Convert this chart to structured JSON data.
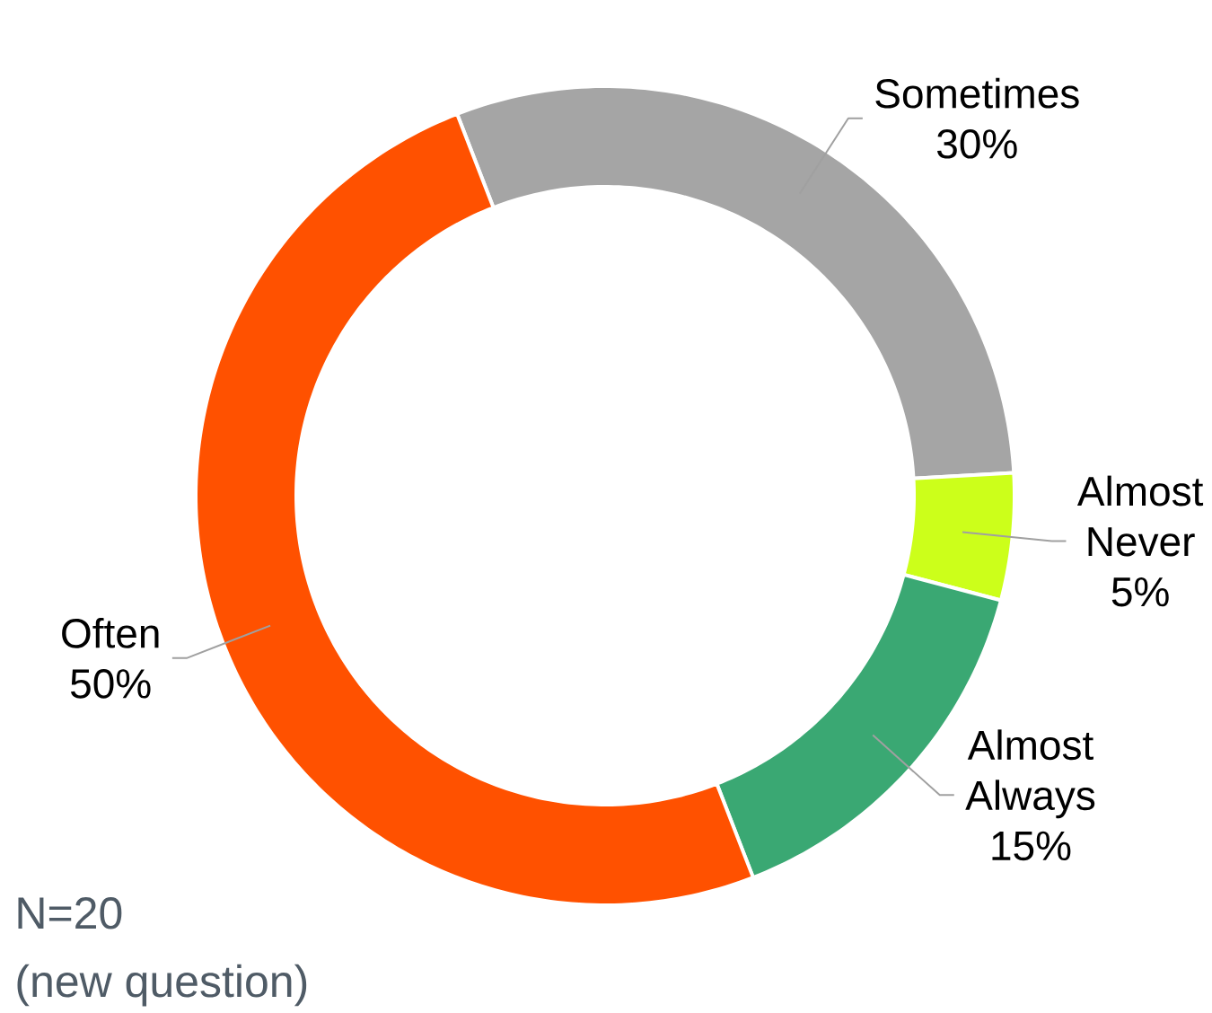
{
  "chart_data": {
    "type": "donut",
    "categories": [
      "Sometimes",
      "Almost Never",
      "Almost Always",
      "Often"
    ],
    "values": [
      30,
      5,
      15,
      50
    ],
    "colors": [
      "#a5a5a5",
      "#ccff1a",
      "#3aa873",
      "#ff5100"
    ],
    "value_labels": [
      "30%",
      "5%",
      "15%",
      "50%"
    ],
    "annotations": [
      "N=20",
      "(new question)"
    ]
  }
}
